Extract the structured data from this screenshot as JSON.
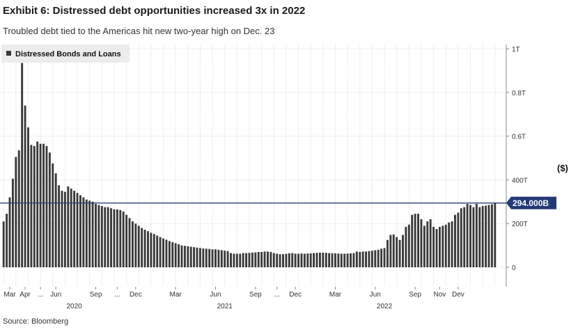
{
  "header": {
    "title": "Exhibit 6: Distressed debt opportunities increased 3x in 2022",
    "subtitle": "Troubled debt tied to the Americas hit new two-year high on Dec. 23"
  },
  "footer": {
    "source": "Source: Bloomberg"
  },
  "colors": {
    "bar": "#3a3a3a",
    "ref_line": "#2b3f7a",
    "ref_label_bg": "#233a78",
    "grid": "#d0d0d0",
    "legend_bg": "#ececec"
  },
  "chart_data": {
    "type": "bar",
    "title": "Exhibit 6: Distressed debt opportunities increased 3x in 2022",
    "ylabel": "($)",
    "ylim": [
      0,
      1000
    ],
    "y_unit": "billions USD",
    "y_ticks": [
      {
        "value": 0,
        "label": "0"
      },
      {
        "value": 200,
        "label": "200T"
      },
      {
        "value": 400,
        "label": "400T"
      },
      {
        "value": 600,
        "label": "0.6T"
      },
      {
        "value": 800,
        "label": "0.8T"
      },
      {
        "value": 1000,
        "label": "1T"
      }
    ],
    "x_ticks": [
      {
        "index": 2,
        "label": "Mar"
      },
      {
        "index": 7,
        "label": "Apr"
      },
      {
        "index": 12,
        "label": "..."
      },
      {
        "index": 17,
        "label": "Jun"
      },
      {
        "index": 30,
        "label": "Sep"
      },
      {
        "index": 37,
        "label": "..."
      },
      {
        "index": 43,
        "label": "Dec"
      },
      {
        "index": 56,
        "label": "Mar"
      },
      {
        "index": 69,
        "label": "Jun"
      },
      {
        "index": 82,
        "label": "Sep"
      },
      {
        "index": 89,
        "label": "..."
      },
      {
        "index": 95,
        "label": "Dec"
      },
      {
        "index": 108,
        "label": "Mar"
      },
      {
        "index": 121,
        "label": "Jun"
      },
      {
        "index": 134,
        "label": "Sep"
      },
      {
        "index": 142,
        "label": "Nov"
      },
      {
        "index": 148,
        "label": "Dev"
      }
    ],
    "year_labels": [
      {
        "index": 23,
        "label": "2020"
      },
      {
        "index": 72,
        "label": "2021"
      },
      {
        "index": 124,
        "label": "2022"
      }
    ],
    "legend": {
      "position": "top-left",
      "entries": [
        "Distressed Bonds and Loans"
      ]
    },
    "reference_line": {
      "value": 294,
      "label": "294.000B"
    },
    "grid": true,
    "series": [
      {
        "name": "Distressed Bonds and Loans",
        "values": [
          210,
          245,
          320,
          405,
          505,
          535,
          935,
          740,
          640,
          560,
          555,
          575,
          565,
          565,
          555,
          525,
          475,
          430,
          375,
          350,
          345,
          370,
          360,
          350,
          340,
          330,
          320,
          310,
          305,
          300,
          290,
          285,
          280,
          275,
          275,
          270,
          265,
          265,
          262,
          255,
          240,
          225,
          210,
          200,
          190,
          180,
          172,
          165,
          158,
          152,
          145,
          138,
          132,
          126,
          120,
          115,
          110,
          105,
          100,
          98,
          96,
          94,
          92,
          90,
          88,
          86,
          85,
          84,
          82,
          82,
          80,
          78,
          76,
          74,
          65,
          62,
          62,
          62,
          65,
          65,
          66,
          67,
          68,
          70,
          70,
          72,
          72,
          70,
          65,
          62,
          60,
          60,
          62,
          64,
          65,
          62,
          62,
          63,
          62,
          63,
          64,
          65,
          66,
          67,
          67,
          66,
          65,
          64,
          64,
          63,
          62,
          62,
          63,
          64,
          65,
          72,
          70,
          72,
          72,
          74,
          76,
          78,
          80,
          85,
          88,
          125,
          148,
          150,
          138,
          125,
          148,
          185,
          195,
          240,
          245,
          245,
          220,
          190,
          210,
          220,
          185,
          175,
          185,
          190,
          195,
          205,
          210,
          240,
          250,
          270,
          275,
          290,
          285,
          275,
          290,
          275,
          280,
          282,
          285,
          288,
          294
        ]
      }
    ]
  }
}
